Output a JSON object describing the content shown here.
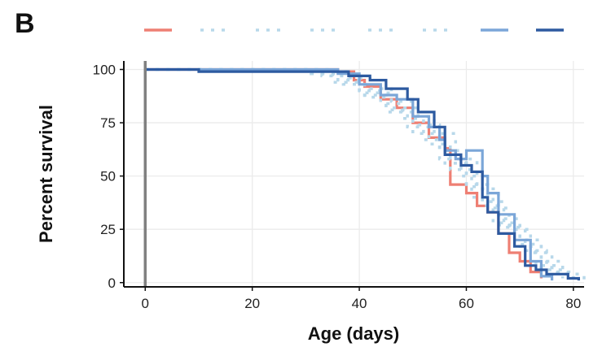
{
  "panel_label": "B",
  "chart_data": {
    "type": "line",
    "step": true,
    "xlabel": "Age (days)",
    "ylabel": "Percent survival",
    "xlim": [
      -4,
      82
    ],
    "ylim": [
      -2,
      104
    ],
    "xticks": [
      0,
      20,
      40,
      60,
      80
    ],
    "yticks": [
      0,
      25,
      50,
      75,
      100
    ],
    "grid": true,
    "legend_position": "top",
    "series": [
      {
        "color": "#ee7f73",
        "style": "solid",
        "x": [
          0,
          36,
          39,
          41,
          44,
          47,
          50,
          53,
          56,
          57,
          60,
          62,
          64,
          66,
          68,
          70,
          72,
          74
        ],
        "y": [
          100,
          99,
          95,
          92,
          86,
          82,
          75,
          68,
          63,
          46,
          42,
          36,
          33,
          23,
          14,
          10,
          5,
          2
        ]
      },
      {
        "color": "#b8d8ea",
        "style": "dotted",
        "x": [
          0,
          32,
          36,
          40,
          44,
          48,
          52,
          56,
          60,
          63,
          66,
          70,
          74,
          78,
          82
        ],
        "y": [
          100,
          98,
          95,
          90,
          84,
          77,
          67,
          56,
          45,
          36,
          28,
          20,
          10,
          4,
          1
        ]
      },
      {
        "color": "#b8d8ea",
        "style": "dotted",
        "x": [
          0,
          30,
          35,
          40,
          45,
          50,
          55,
          60,
          64,
          68,
          72,
          76,
          80
        ],
        "y": [
          100,
          98,
          94,
          88,
          80,
          70,
          58,
          46,
          35,
          25,
          14,
          5,
          1
        ]
      },
      {
        "color": "#b8d8ea",
        "style": "dotted",
        "x": [
          0,
          34,
          38,
          42,
          46,
          50,
          54,
          58,
          62,
          66,
          70,
          74,
          78
        ],
        "y": [
          100,
          99,
          96,
          91,
          85,
          78,
          70,
          58,
          44,
          30,
          18,
          8,
          2
        ]
      },
      {
        "color": "#b8d8ea",
        "style": "dotted",
        "x": [
          0,
          33,
          37,
          41,
          45,
          49,
          53,
          57,
          61,
          65,
          69,
          73,
          77
        ],
        "y": [
          100,
          97,
          93,
          87,
          81,
          73,
          65,
          53,
          40,
          27,
          17,
          7,
          1
        ]
      },
      {
        "color": "#b8d8ea",
        "style": "dotted",
        "x": [
          0,
          31,
          36,
          41,
          46,
          51,
          55,
          59,
          63,
          67,
          71,
          75,
          79
        ],
        "y": [
          100,
          98,
          94,
          89,
          82,
          74,
          62,
          50,
          38,
          26,
          15,
          6,
          2
        ]
      },
      {
        "color": "#7ba6d8",
        "style": "solid",
        "x": [
          0,
          36,
          40,
          44,
          47,
          50,
          53,
          55,
          56,
          58,
          60,
          63,
          64,
          66,
          69,
          72,
          74,
          76
        ],
        "y": [
          100,
          98,
          93,
          88,
          86,
          78,
          73,
          67,
          62,
          58,
          62,
          50,
          42,
          32,
          20,
          10,
          3,
          1
        ]
      },
      {
        "color": "#2d5aa0",
        "style": "solid",
        "x": [
          0,
          10,
          38,
          42,
          45,
          49,
          51,
          54,
          56,
          59,
          61,
          63,
          64,
          66,
          69,
          71,
          73,
          75,
          79,
          81
        ],
        "y": [
          100,
          99,
          97,
          95,
          91,
          86,
          80,
          73,
          60,
          55,
          52,
          40,
          33,
          23,
          17,
          8,
          6,
          4,
          2,
          1
        ]
      }
    ]
  }
}
